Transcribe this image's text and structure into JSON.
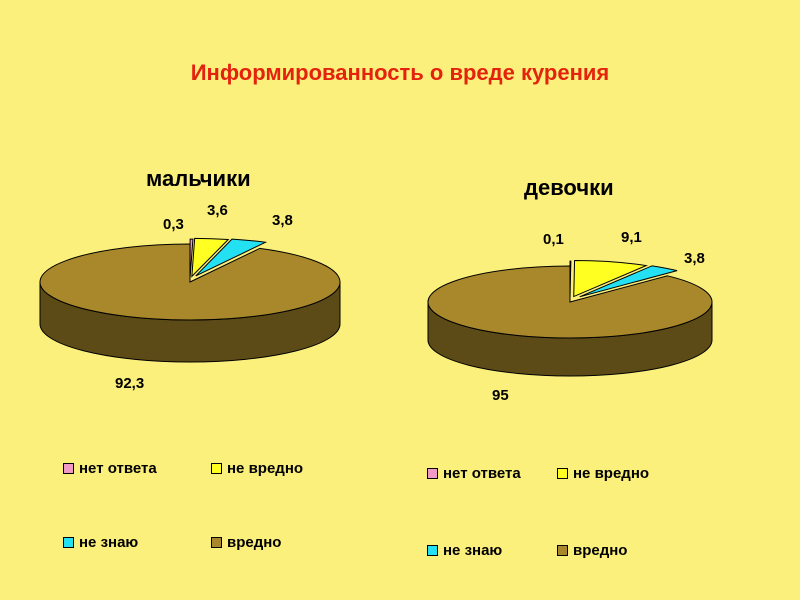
{
  "title": "Информированность о вреде курения",
  "legend_labels": [
    "нет ответа",
    "не вредно",
    "не знаю",
    "вредно"
  ],
  "colors": {
    "background": "#fbf07b",
    "title": "#e4230f",
    "нет ответа": "#f29ac7",
    "не вредно": "#ffff22",
    "не знаю": "#23e0f2",
    "вредно": "#a8882a"
  },
  "chart_data": [
    {
      "type": "pie",
      "title": "мальчики",
      "categories": [
        "нет ответа",
        "не вредно",
        "не знаю",
        "вредно"
      ],
      "values": [
        0.3,
        3.6,
        3.8,
        92.3
      ],
      "data_labels": [
        "0,3",
        "3,6",
        "3,8",
        "92,3"
      ],
      "legend": "bottom"
    },
    {
      "type": "pie",
      "title": "девочки",
      "categories": [
        "нет ответа",
        "не вредно",
        "не знаю",
        "вредно"
      ],
      "values": [
        0.1,
        9.1,
        3.8,
        95
      ],
      "data_labels": [
        "0,1",
        "9,1",
        "3,8",
        "95"
      ],
      "legend": "bottom"
    }
  ]
}
